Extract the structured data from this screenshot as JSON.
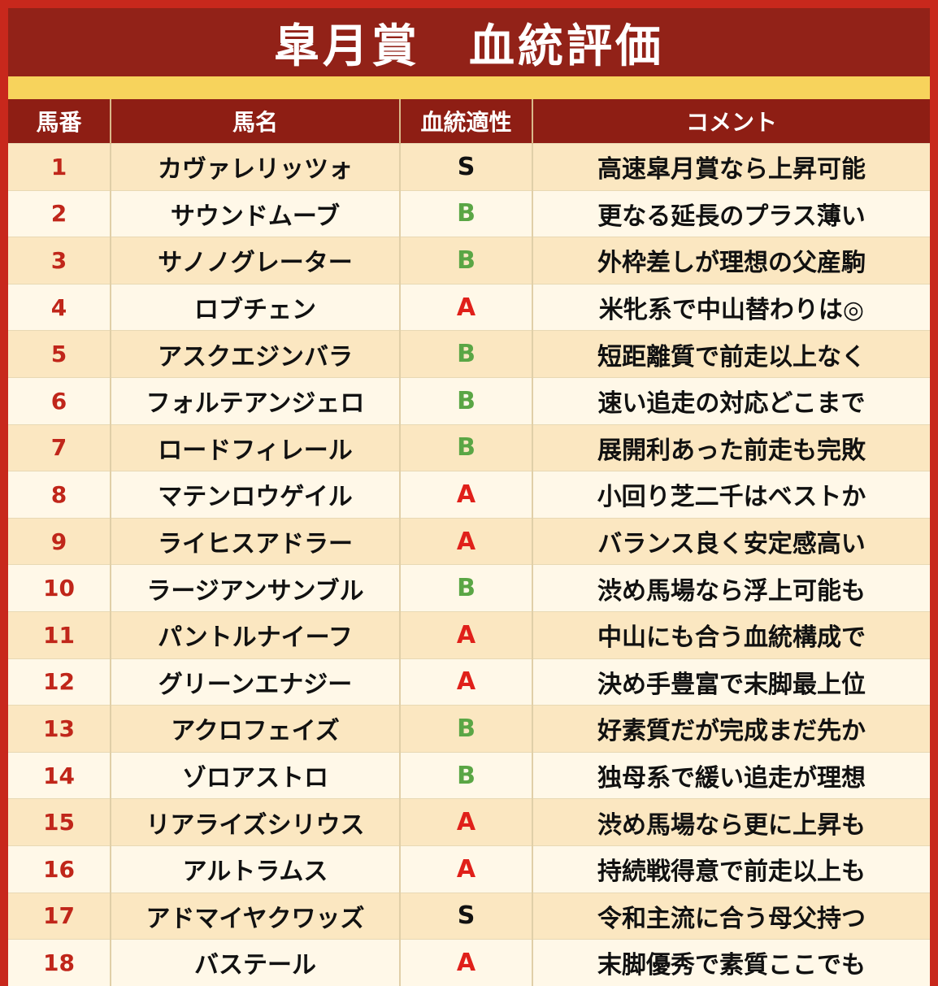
{
  "title": "皐月賞　血統評価",
  "headers": [
    "馬番",
    "馬名",
    "血統適性",
    "コメント"
  ],
  "colors": {
    "S": "#111111",
    "A": "#e0201a",
    "B": "#5aa645"
  },
  "rows": [
    {
      "num": "1",
      "name": "カヴァレリッツォ",
      "grade": "S",
      "comment": "高速皐月賞なら上昇可能"
    },
    {
      "num": "2",
      "name": "サウンドムーブ",
      "grade": "B",
      "comment": "更なる延長のプラス薄い"
    },
    {
      "num": "3",
      "name": "サノノグレーター",
      "grade": "B",
      "comment": "外枠差しが理想の父産駒"
    },
    {
      "num": "4",
      "name": "ロブチェン",
      "grade": "A",
      "comment": "米牝系で中山替わりは◎"
    },
    {
      "num": "5",
      "name": "アスクエジンバラ",
      "grade": "B",
      "comment": "短距離質で前走以上なく"
    },
    {
      "num": "6",
      "name": "フォルテアンジェロ",
      "grade": "B",
      "comment": "速い追走の対応どこまで"
    },
    {
      "num": "7",
      "name": "ロードフィレール",
      "grade": "B",
      "comment": "展開利あった前走も完敗"
    },
    {
      "num": "8",
      "name": "マテンロウゲイル",
      "grade": "A",
      "comment": "小回り芝二千はベストか"
    },
    {
      "num": "9",
      "name": "ライヒスアドラー",
      "grade": "A",
      "comment": "バランス良く安定感高い"
    },
    {
      "num": "10",
      "name": "ラージアンサンブル",
      "grade": "B",
      "comment": "渋め馬場なら浮上可能も"
    },
    {
      "num": "11",
      "name": "パントルナイーフ",
      "grade": "A",
      "comment": "中山にも合う血統構成で"
    },
    {
      "num": "12",
      "name": "グリーンエナジー",
      "grade": "A",
      "comment": "決め手豊富で末脚最上位"
    },
    {
      "num": "13",
      "name": "アクロフェイズ",
      "grade": "B",
      "comment": "好素質だが完成まだ先か"
    },
    {
      "num": "14",
      "name": "ゾロアストロ",
      "grade": "B",
      "comment": "独母系で緩い追走が理想"
    },
    {
      "num": "15",
      "name": "リアライズシリウス",
      "grade": "A",
      "comment": "渋め馬場なら更に上昇も"
    },
    {
      "num": "16",
      "name": "アルトラムス",
      "grade": "A",
      "comment": "持続戦得意で前走以上も"
    },
    {
      "num": "17",
      "name": "アドマイヤクワッズ",
      "grade": "S",
      "comment": "令和主流に合う母父持つ"
    },
    {
      "num": "18",
      "name": "バステール",
      "grade": "A",
      "comment": "末脚優秀で素質ここでも"
    }
  ]
}
